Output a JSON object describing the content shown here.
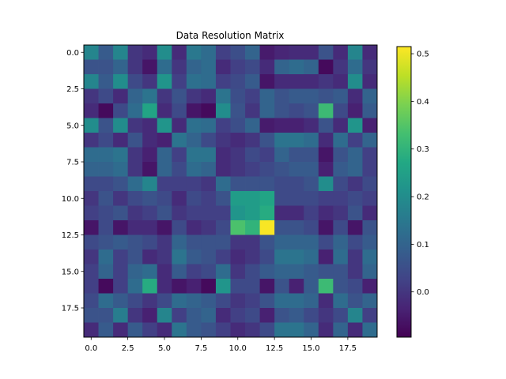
{
  "chart_data": {
    "type": "heatmap",
    "title": "Data Resolution Matrix",
    "xlabel": "",
    "ylabel": "",
    "xlim": [
      -0.5,
      19.5
    ],
    "ylim": [
      19.5,
      -0.5
    ],
    "x_ticks": [
      0.0,
      2.5,
      5.0,
      7.5,
      10.0,
      12.5,
      15.0,
      17.5
    ],
    "x_tick_labels": [
      "0.0",
      "2.5",
      "5.0",
      "7.5",
      "10.0",
      "12.5",
      "15.0",
      "17.5"
    ],
    "y_ticks": [
      0.0,
      2.5,
      5.0,
      7.5,
      10.0,
      12.5,
      15.0,
      17.5
    ],
    "y_tick_labels": [
      "0.0",
      "2.5",
      "5.0",
      "7.5",
      "10.0",
      "12.5",
      "15.0",
      "17.5"
    ],
    "colormap": "viridis",
    "colorbar": {
      "min": -0.095,
      "max": 0.515,
      "ticks": [
        0.0,
        0.1,
        0.2,
        0.3,
        0.4,
        0.5
      ],
      "tick_labels": [
        "0.0",
        "0.1",
        "0.2",
        "0.3",
        "0.4",
        "0.5"
      ]
    },
    "grid": false,
    "values": [
      [
        0.18,
        0.08,
        0.18,
        0.0,
        -0.02,
        0.2,
        -0.02,
        0.15,
        0.12,
        0.02,
        0.05,
        0.1,
        -0.05,
        -0.03,
        -0.02,
        -0.02,
        0.06,
        -0.02,
        0.18,
        -0.02
      ],
      [
        0.06,
        0.06,
        0.1,
        0.0,
        -0.06,
        0.12,
        0.0,
        0.1,
        0.12,
        -0.02,
        0.02,
        0.04,
        -0.02,
        0.1,
        0.12,
        0.1,
        -0.08,
        0.0,
        0.12,
        0.0
      ],
      [
        0.18,
        0.08,
        0.2,
        0.04,
        0.0,
        0.22,
        0.02,
        0.13,
        0.12,
        0.02,
        0.04,
        0.08,
        -0.06,
        -0.02,
        -0.02,
        -0.02,
        0.0,
        -0.02,
        0.2,
        -0.02
      ],
      [
        0.0,
        0.04,
        -0.02,
        0.1,
        0.14,
        0.0,
        0.06,
        0.0,
        -0.02,
        0.14,
        0.05,
        0.02,
        0.1,
        0.06,
        0.08,
        0.08,
        0.06,
        0.08,
        -0.02,
        0.1
      ],
      [
        -0.02,
        -0.08,
        0.04,
        0.12,
        0.26,
        -0.02,
        0.04,
        -0.06,
        -0.08,
        0.2,
        0.06,
        0.0,
        0.1,
        0.06,
        0.04,
        0.06,
        0.32,
        0.04,
        -0.04,
        0.08
      ],
      [
        0.2,
        0.06,
        0.2,
        0.0,
        -0.02,
        0.22,
        -0.02,
        0.13,
        0.12,
        0.02,
        0.05,
        0.1,
        -0.05,
        -0.04,
        -0.04,
        -0.02,
        0.06,
        -0.02,
        0.22,
        -0.04
      ],
      [
        0.0,
        0.04,
        -0.02,
        0.06,
        -0.02,
        -0.04,
        0.14,
        0.1,
        0.04,
        0.0,
        -0.02,
        0.0,
        0.06,
        0.14,
        0.14,
        0.12,
        -0.02,
        0.12,
        0.02,
        0.1
      ],
      [
        0.12,
        0.12,
        0.14,
        0.0,
        -0.04,
        0.1,
        0.02,
        0.14,
        0.14,
        -0.02,
        0.0,
        0.04,
        0.02,
        0.1,
        0.06,
        0.06,
        -0.06,
        0.06,
        0.1,
        0.02
      ],
      [
        0.1,
        0.1,
        0.12,
        0.0,
        -0.06,
        0.1,
        0.04,
        0.12,
        0.1,
        -0.02,
        0.0,
        0.02,
        0.04,
        0.06,
        0.08,
        0.08,
        -0.04,
        0.08,
        0.1,
        0.02
      ],
      [
        0.04,
        0.04,
        0.06,
        0.12,
        0.18,
        0.02,
        0.02,
        0.02,
        0.0,
        0.12,
        0.06,
        0.06,
        0.06,
        0.04,
        0.04,
        0.06,
        0.2,
        0.04,
        0.0,
        0.04
      ],
      [
        0.0,
        0.06,
        0.0,
        0.04,
        0.06,
        0.04,
        -0.02,
        0.04,
        0.02,
        0.06,
        0.24,
        0.24,
        0.26,
        0.04,
        0.04,
        0.04,
        0.02,
        0.02,
        0.04,
        0.02
      ],
      [
        0.02,
        0.04,
        0.06,
        0.0,
        0.02,
        0.06,
        0.0,
        0.02,
        0.02,
        0.02,
        0.22,
        0.24,
        0.28,
        -0.02,
        -0.02,
        0.02,
        -0.02,
        0.0,
        0.06,
        -0.02
      ],
      [
        -0.06,
        0.04,
        -0.06,
        -0.02,
        -0.02,
        -0.06,
        0.04,
        -0.02,
        0.0,
        0.04,
        0.34,
        0.3,
        0.51,
        0.06,
        0.06,
        0.04,
        -0.06,
        0.04,
        -0.06,
        0.06
      ],
      [
        0.04,
        0.06,
        0.08,
        0.06,
        0.04,
        0.0,
        0.1,
        0.06,
        0.06,
        0.06,
        0.0,
        0.0,
        0.06,
        0.1,
        0.1,
        0.1,
        0.04,
        0.1,
        0.04,
        0.08
      ],
      [
        0.0,
        0.12,
        0.02,
        0.06,
        -0.02,
        0.0,
        0.14,
        0.08,
        0.06,
        0.02,
        -0.02,
        0.0,
        0.04,
        0.14,
        0.14,
        0.12,
        -0.04,
        0.12,
        0.0,
        0.12
      ],
      [
        0.02,
        0.1,
        0.02,
        0.1,
        0.12,
        -0.02,
        0.08,
        0.02,
        0.04,
        0.12,
        0.0,
        0.04,
        0.08,
        0.1,
        0.1,
        0.08,
        0.06,
        0.06,
        0.0,
        0.1
      ],
      [
        0.02,
        -0.08,
        0.02,
        0.12,
        0.28,
        -0.02,
        -0.06,
        -0.04,
        -0.08,
        0.22,
        0.04,
        0.04,
        -0.06,
        0.06,
        -0.04,
        0.08,
        0.32,
        0.06,
        0.04,
        -0.04
      ],
      [
        0.04,
        0.12,
        0.08,
        0.04,
        0.0,
        0.04,
        0.12,
        0.1,
        0.08,
        0.04,
        0.0,
        0.02,
        0.06,
        0.12,
        0.12,
        0.1,
        -0.02,
        0.12,
        0.06,
        0.1
      ],
      [
        0.06,
        0.06,
        0.16,
        0.0,
        -0.04,
        0.18,
        0.02,
        0.08,
        0.1,
        -0.02,
        0.02,
        0.04,
        -0.04,
        0.06,
        0.08,
        0.04,
        0.0,
        0.04,
        0.18,
        0.02
      ],
      [
        -0.02,
        0.08,
        -0.02,
        0.08,
        0.02,
        -0.02,
        0.14,
        0.08,
        0.06,
        0.02,
        -0.02,
        0.0,
        0.04,
        0.14,
        0.14,
        0.1,
        -0.02,
        0.1,
        -0.02,
        0.12
      ]
    ]
  }
}
